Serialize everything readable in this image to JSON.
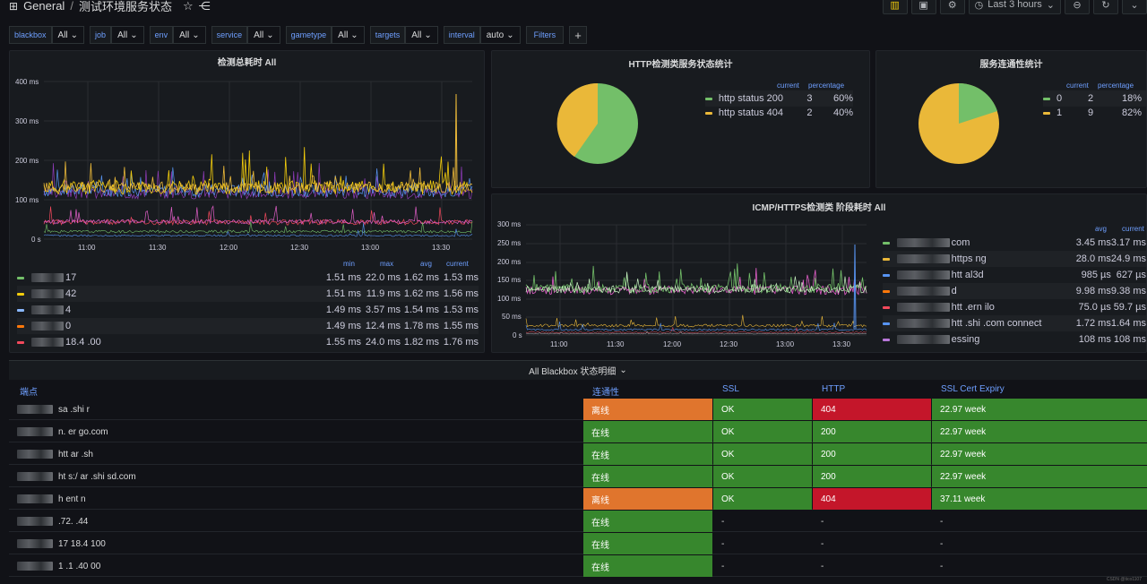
{
  "header": {
    "folder": "General",
    "separator": "/",
    "title": "测试环境服务状态",
    "time_range": "Last 3 hours"
  },
  "variables": [
    {
      "label": "blackbox",
      "value": "All"
    },
    {
      "label": "job",
      "value": "All"
    },
    {
      "label": "env",
      "value": "All"
    },
    {
      "label": "service",
      "value": "All"
    },
    {
      "label": "gametype",
      "value": "All"
    },
    {
      "label": "targets",
      "value": "All"
    },
    {
      "label": "interval",
      "value": "auto"
    },
    {
      "label": "Filters",
      "value": ""
    }
  ],
  "panel_latency": {
    "title": "检测总耗时 All",
    "y_ticks": [
      "400 ms",
      "300 ms",
      "200 ms",
      "100 ms",
      "0 s"
    ],
    "x_ticks": [
      "11:00",
      "11:30",
      "12:00",
      "12:30",
      "13:00",
      "13:30"
    ],
    "legend_headers": [
      "min",
      "max",
      "avg",
      "current"
    ],
    "legend_rows": [
      {
        "color": "#73bf69",
        "name": "17",
        "min": "1.51 ms",
        "max": "22.0 ms",
        "avg": "1.62 ms",
        "current": "1.53 ms"
      },
      {
        "color": "#f2cc0c",
        "name": "42",
        "min": "1.51 ms",
        "max": "11.9 ms",
        "avg": "1.62 ms",
        "current": "1.56 ms"
      },
      {
        "color": "#8ab8ff",
        "name": "4",
        "min": "1.49 ms",
        "max": "3.57 ms",
        "avg": "1.54 ms",
        "current": "1.53 ms"
      },
      {
        "color": "#ff780a",
        "name": "0",
        "min": "1.49 ms",
        "max": "12.4 ms",
        "avg": "1.78 ms",
        "current": "1.55 ms"
      },
      {
        "color": "#f2495c",
        "name": "18.4 .00",
        "min": "1.55 ms",
        "max": "24.0 ms",
        "avg": "1.82 ms",
        "current": "1.76 ms"
      }
    ]
  },
  "panel_http": {
    "title": "HTTP检测类服务状态统计",
    "headers": [
      "current",
      "percentage"
    ],
    "rows": [
      {
        "color": "#73bf69",
        "name": "http status 200",
        "current": "3",
        "percentage": "60%"
      },
      {
        "color": "#eab839",
        "name": "http status 404",
        "current": "2",
        "percentage": "40%"
      }
    ]
  },
  "panel_conn": {
    "title": "服务连通性统计",
    "headers": [
      "current",
      "percentage"
    ],
    "rows": [
      {
        "color": "#73bf69",
        "name": "0",
        "current": "2",
        "percentage": "18%"
      },
      {
        "color": "#eab839",
        "name": "1",
        "current": "9",
        "percentage": "82%"
      }
    ]
  },
  "panel_phase": {
    "title": "ICMP/HTTPS检测类 阶段耗时 All",
    "y_ticks": [
      "300 ms",
      "250 ms",
      "200 ms",
      "150 ms",
      "100 ms",
      "50 ms",
      "0 s"
    ],
    "x_ticks": [
      "11:00",
      "11:30",
      "12:00",
      "12:30",
      "13:00",
      "13:30"
    ],
    "legend_headers": [
      "avg",
      "current"
    ],
    "legend_rows": [
      {
        "color": "#73bf69",
        "name": "com",
        "avg": "3.45 ms",
        "current": "3.17 ms"
      },
      {
        "color": "#eab839",
        "name": "https ng",
        "avg": "28.0 ms",
        "current": "24.9 ms"
      },
      {
        "color": "#5794f2",
        "name": "htt al3d",
        "avg": "985 µs",
        "current": "627 µs"
      },
      {
        "color": "#ff780a",
        "name": "d",
        "avg": "9.98 ms",
        "current": "9.38 ms"
      },
      {
        "color": "#f2495c",
        "name": "htt .ern ilo",
        "avg": "75.0 µs",
        "current": "59.7 µs"
      },
      {
        "color": "#5794f2",
        "name": "htt .shi .com connect",
        "avg": "1.72 ms",
        "current": "1.64 ms"
      },
      {
        "color": "#b877d9",
        "name": "essing",
        "avg": "108 ms",
        "current": "108 ms"
      }
    ]
  },
  "section": {
    "title": "All Blackbox 状态明细"
  },
  "status_table": {
    "headers": [
      "端点",
      "连通性",
      "SSL",
      "HTTP",
      "SSL Cert Expiry"
    ],
    "rows": [
      {
        "endpoint": "sa .shi r",
        "conn": "离线",
        "ssl": "OK",
        "http": "404",
        "expiry": "22.97 week"
      },
      {
        "endpoint": "n. er go.com",
        "conn": "在线",
        "ssl": "OK",
        "http": "200",
        "expiry": "22.97 week"
      },
      {
        "endpoint": "htt ar .sh",
        "conn": "在线",
        "ssl": "OK",
        "http": "200",
        "expiry": "22.97 week"
      },
      {
        "endpoint": "ht s:/ ar .shi sd.com",
        "conn": "在线",
        "ssl": "OK",
        "http": "200",
        "expiry": "22.97 week"
      },
      {
        "endpoint": "h ent n",
        "conn": "离线",
        "ssl": "OK",
        "http": "404",
        "expiry": "37.11 week"
      },
      {
        "endpoint": ".72. .44",
        "conn": "在线",
        "ssl": "-",
        "http": "-",
        "expiry": "-"
      },
      {
        "endpoint": "17 18.4 100",
        "conn": "在线",
        "ssl": "-",
        "http": "-",
        "expiry": "-"
      },
      {
        "endpoint": "1 .1 .40 00",
        "conn": "在线",
        "ssl": "-",
        "http": "-",
        "expiry": "-"
      }
    ]
  },
  "watermark": "CSDN @tico1107",
  "colors": {
    "offline": "#e0752d",
    "online": "#37872d",
    "error": "#c4162a",
    "link": "#6e9fff"
  }
}
